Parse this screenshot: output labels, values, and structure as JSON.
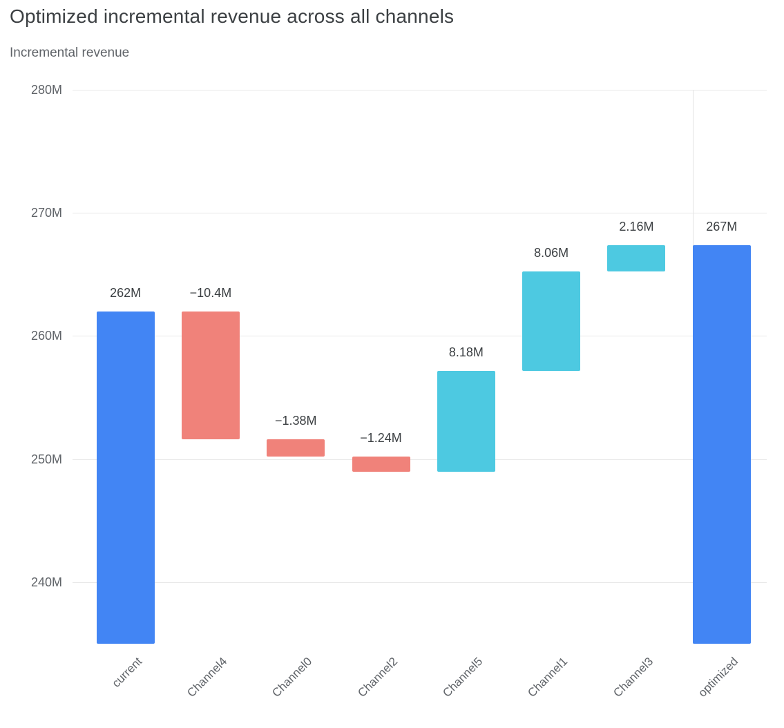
{
  "page": {
    "title": "Optimized incremental revenue across all channels",
    "y_axis_title": "Incremental revenue"
  },
  "colors": {
    "increase": "#4DC9E1",
    "decrease": "#F0827A",
    "total": "#4285F4",
    "gridline": "#e8e8e8",
    "axis_text": "#5f6368",
    "value_text": "#3c4043"
  },
  "chart_data": {
    "type": "bar",
    "subtype": "waterfall",
    "title": "Optimized incremental revenue across all channels",
    "ylabel": "Incremental revenue",
    "categories": [
      "current",
      "Channel4",
      "Channel0",
      "Channel2",
      "Channel5",
      "Channel1",
      "Channel3",
      "optimized"
    ],
    "measures": [
      "absolute",
      "relative",
      "relative",
      "relative",
      "relative",
      "relative",
      "relative",
      "total"
    ],
    "values": [
      262,
      -10.4,
      -1.38,
      -1.24,
      8.18,
      8.06,
      2.16,
      267.38
    ],
    "bar_labels": [
      "262M",
      "−10.4M",
      "−1.38M",
      "−1.24M",
      "8.18M",
      "8.06M",
      "2.16M",
      "267M"
    ],
    "unit": "M",
    "ylim": [
      235,
      280
    ],
    "yticks": [
      240,
      250,
      260,
      270,
      280
    ],
    "ytick_labels": [
      "240M",
      "250M",
      "260M",
      "270M",
      "280M"
    ],
    "grid": "horizontal",
    "legend": "none"
  }
}
